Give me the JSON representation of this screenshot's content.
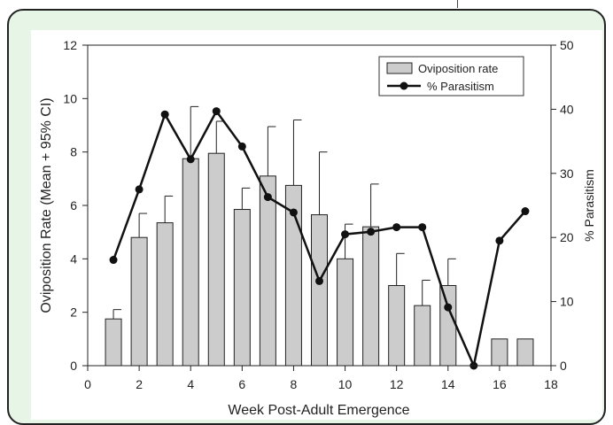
{
  "chart_data": {
    "type": "bar+line",
    "title": "",
    "xlabel": "Week Post-Adult Emergence",
    "ylabel_left": "Oviposition Rate (Mean + 95% CI)",
    "ylabel_right": "% Parasitism",
    "xlim": [
      0,
      18
    ],
    "ylim_left": [
      0,
      12
    ],
    "ylim_right": [
      0,
      50
    ],
    "x_ticks": [
      "0",
      "2",
      "4",
      "6",
      "8",
      "10",
      "12",
      "14",
      "16",
      "18"
    ],
    "y_left_ticks": [
      "0",
      "2",
      "4",
      "6",
      "8",
      "10",
      "12"
    ],
    "y_right_ticks": [
      "0",
      "10",
      "20",
      "30",
      "40",
      "50"
    ],
    "legend_position": "top-right",
    "series": [
      {
        "name": "Oviposition rate",
        "type": "bar",
        "axis": "left",
        "color": "#cccccc",
        "x": [
          1,
          2,
          3,
          4,
          5,
          6,
          7,
          8,
          9,
          10,
          11,
          12,
          13,
          14,
          16,
          17
        ],
        "values": [
          1.75,
          4.8,
          5.35,
          7.75,
          7.95,
          5.85,
          7.1,
          6.75,
          5.65,
          4.0,
          5.2,
          3.0,
          2.25,
          3.0,
          1.0,
          1.0
        ],
        "ci_upper": [
          2.1,
          5.7,
          6.35,
          9.7,
          9.15,
          6.65,
          8.95,
          9.2,
          8.0,
          5.3,
          6.8,
          4.2,
          3.2,
          4.0,
          1.0,
          1.0
        ]
      },
      {
        "name": "% Parasitism",
        "type": "line",
        "axis": "right",
        "color": "#111111",
        "x": [
          1,
          2,
          3,
          4,
          5,
          6,
          7,
          8,
          9,
          10,
          11,
          12,
          13,
          14,
          15,
          16,
          17
        ],
        "values": [
          16.5,
          27.5,
          39.2,
          32.2,
          39.7,
          34.2,
          26.3,
          23.9,
          13.2,
          20.5,
          20.9,
          21.6,
          21.6,
          9.1,
          0,
          19.5,
          24.1
        ]
      }
    ]
  }
}
